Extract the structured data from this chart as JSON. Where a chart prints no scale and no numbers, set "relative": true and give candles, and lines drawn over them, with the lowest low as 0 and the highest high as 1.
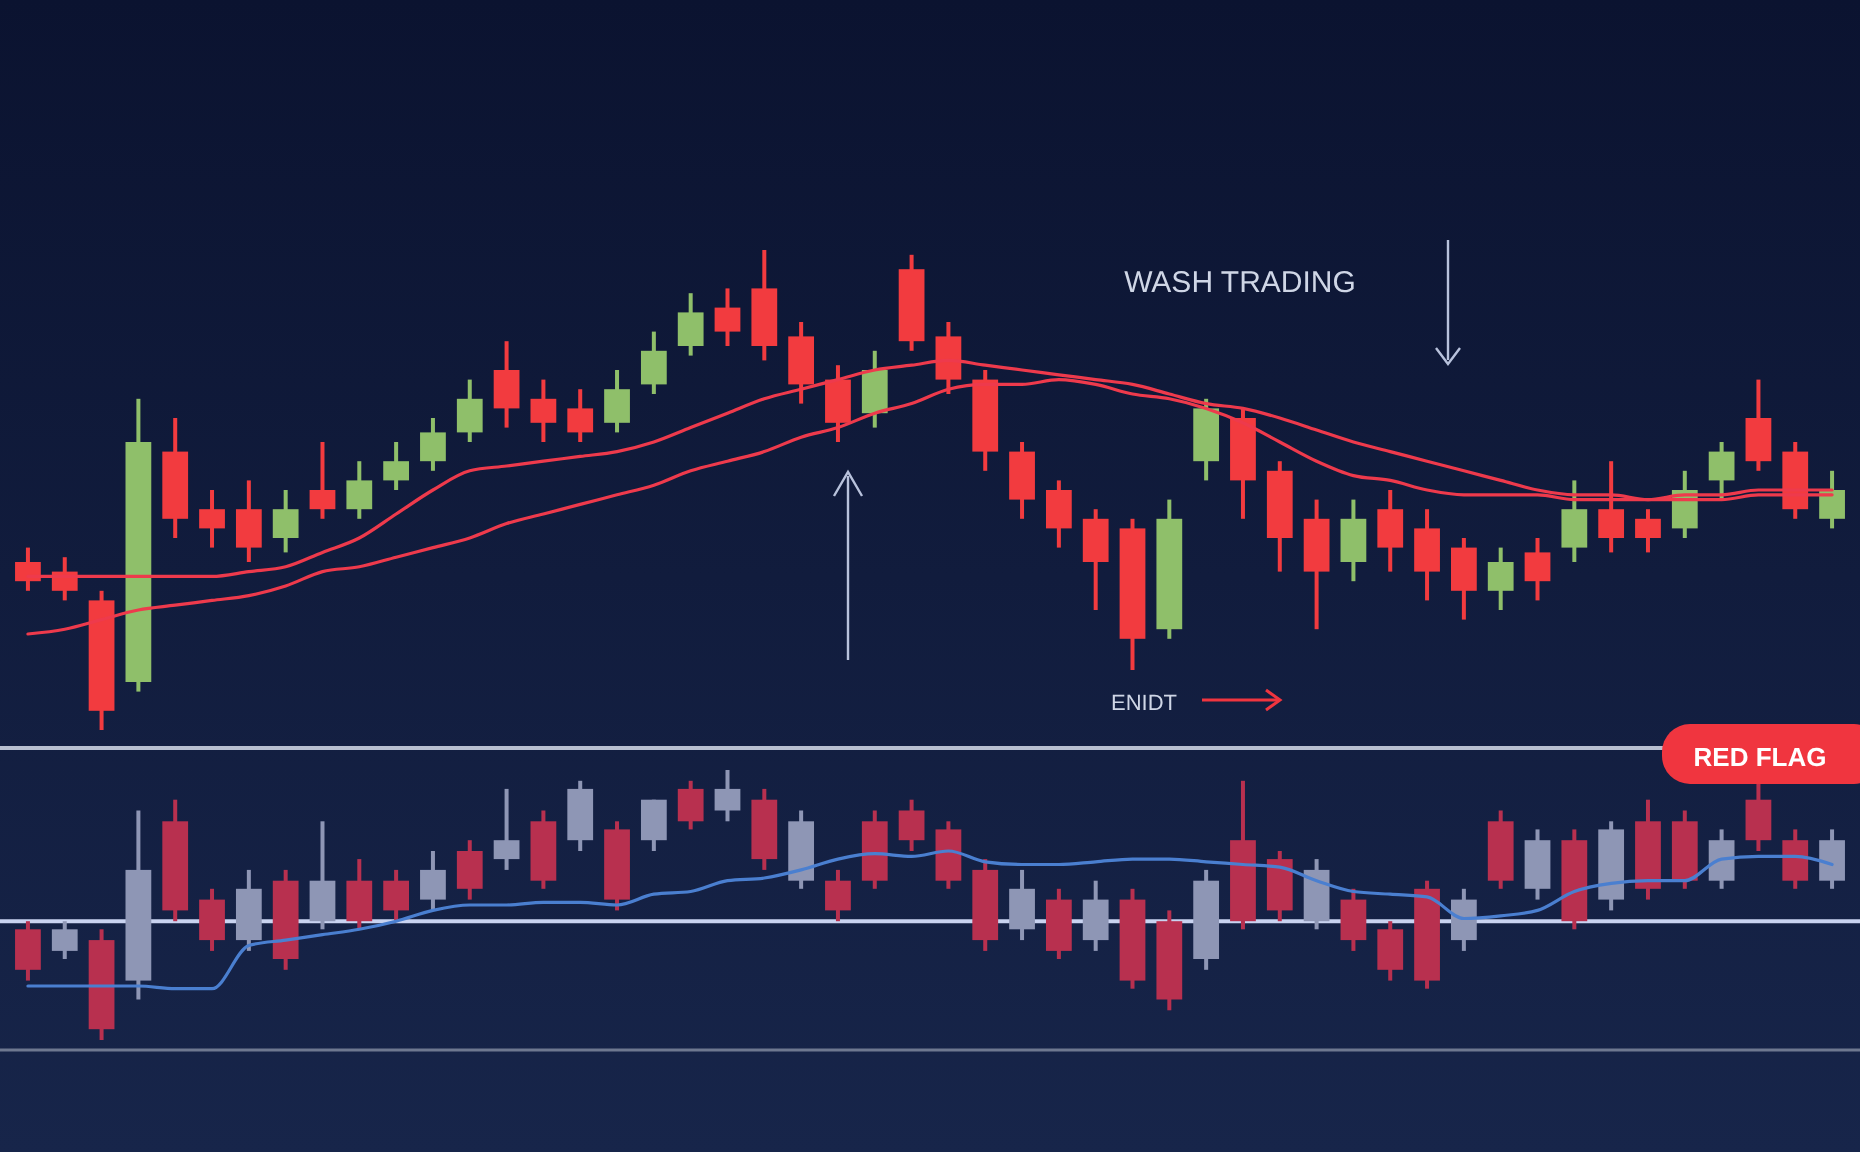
{
  "chart_data": [
    {
      "type": "candlestick",
      "relative": true,
      "categories": [
        null,
        null,
        null,
        null,
        null,
        null,
        null,
        null,
        null,
        null,
        null,
        null,
        null,
        null,
        null,
        null,
        null,
        null,
        null,
        null,
        null,
        null,
        null,
        null,
        null,
        null,
        null,
        null,
        null,
        null,
        null,
        null,
        null,
        null,
        null,
        null,
        null,
        null,
        null,
        null,
        null,
        null,
        null,
        null,
        null,
        null,
        null,
        null,
        null,
        null
      ],
      "ohlc": [
        [
          0.35,
          0.38,
          0.29,
          0.31
        ],
        [
          0.33,
          0.36,
          0.27,
          0.29
        ],
        [
          0.27,
          0.29,
          0,
          0.04
        ],
        [
          0.1,
          0.69,
          0.08,
          0.6
        ],
        [
          0.58,
          0.65,
          0.4,
          0.44
        ],
        [
          0.46,
          0.5,
          0.38,
          0.42
        ],
        [
          0.46,
          0.52,
          0.35,
          0.38
        ],
        [
          0.4,
          0.5,
          0.37,
          0.46
        ],
        [
          0.5,
          0.6,
          0.44,
          0.46
        ],
        [
          0.46,
          0.56,
          0.44,
          0.52
        ],
        [
          0.52,
          0.6,
          0.5,
          0.56
        ],
        [
          0.56,
          0.65,
          0.54,
          0.62
        ],
        [
          0.62,
          0.73,
          0.6,
          0.69
        ],
        [
          0.75,
          0.81,
          0.63,
          0.67
        ],
        [
          0.69,
          0.73,
          0.6,
          0.64
        ],
        [
          0.67,
          0.71,
          0.6,
          0.62
        ],
        [
          0.64,
          0.75,
          0.62,
          0.71
        ],
        [
          0.72,
          0.83,
          0.7,
          0.79
        ],
        [
          0.8,
          0.91,
          0.78,
          0.87
        ],
        [
          0.88,
          0.92,
          0.8,
          0.83
        ],
        [
          0.92,
          1,
          0.77,
          0.8
        ],
        [
          0.82,
          0.85,
          0.68,
          0.72
        ],
        [
          0.73,
          0.76,
          0.6,
          0.64
        ],
        [
          0.66,
          0.79,
          0.63,
          0.75
        ],
        [
          0.96,
          0.99,
          0.79,
          0.81
        ],
        [
          0.82,
          0.85,
          0.7,
          0.73
        ],
        [
          0.73,
          0.75,
          0.54,
          0.58
        ],
        [
          0.58,
          0.6,
          0.44,
          0.48
        ],
        [
          0.5,
          0.52,
          0.38,
          0.42
        ],
        [
          0.44,
          0.46,
          0.25,
          0.35
        ],
        [
          0.42,
          0.44,
          0.125,
          0.19
        ],
        [
          0.21,
          0.48,
          0.19,
          0.44
        ],
        [
          0.56,
          0.69,
          0.52,
          0.67
        ],
        [
          0.65,
          0.67,
          0.44,
          0.52
        ],
        [
          0.54,
          0.56,
          0.33,
          0.4
        ],
        [
          0.44,
          0.48,
          0.21,
          0.33
        ],
        [
          0.35,
          0.48,
          0.31,
          0.44
        ],
        [
          0.46,
          0.5,
          0.33,
          0.38
        ],
        [
          0.42,
          0.46,
          0.27,
          0.33
        ],
        [
          0.38,
          0.4,
          0.23,
          0.29
        ],
        [
          0.29,
          0.38,
          0.25,
          0.35
        ],
        [
          0.37,
          0.4,
          0.27,
          0.31
        ],
        [
          0.38,
          0.52,
          0.35,
          0.46
        ],
        [
          0.46,
          0.56,
          0.37,
          0.4
        ],
        [
          0.44,
          0.46,
          0.37,
          0.4
        ],
        [
          0.42,
          0.54,
          0.4,
          0.5
        ],
        [
          0.52,
          0.6,
          0.48,
          0.58
        ],
        [
          0.65,
          0.73,
          0.54,
          0.56
        ],
        [
          0.58,
          0.6,
          0.44,
          0.46
        ],
        [
          0.44,
          0.54,
          0.42,
          0.5
        ]
      ],
      "colors": [
        "#f23b3f",
        "#f23b3f",
        "#f23b3f",
        "#8fbf6a",
        "#f23b3f",
        "#f23b3f",
        "#f23b3f",
        "#8fbf6a",
        "#f23b3f",
        "#8fbf6a",
        "#8fbf6a",
        "#8fbf6a",
        "#8fbf6a",
        "#f23b3f",
        "#f23b3f",
        "#f23b3f",
        "#8fbf6a",
        "#8fbf6a",
        "#8fbf6a",
        "#f23b3f",
        "#f23b3f",
        "#f23b3f",
        "#f23b3f",
        "#8fbf6a",
        "#f23b3f",
        "#f23b3f",
        "#f23b3f",
        "#f23b3f",
        "#f23b3f",
        "#f23b3f",
        "#f23b3f",
        "#8fbf6a",
        "#8fbf6a",
        "#f23b3f",
        "#f23b3f",
        "#f23b3f",
        "#8fbf6a",
        "#f23b3f",
        "#f23b3f",
        "#f23b3f",
        "#8fbf6a",
        "#f23b3f",
        "#8fbf6a",
        "#f23b3f",
        "#f23b3f",
        "#8fbf6a",
        "#8fbf6a",
        "#f23b3f",
        "#f23b3f",
        "#8fbf6a"
      ],
      "series": [
        {
          "type": "line",
          "color": "#ee3a4c",
          "values": [
            0.32,
            0.32,
            0.32,
            0.32,
            0.32,
            0.32,
            0.33,
            0.34,
            0.37,
            0.4,
            0.45,
            0.5,
            0.54,
            0.55,
            0.56,
            0.57,
            0.58,
            0.6,
            0.63,
            0.66,
            0.69,
            0.71,
            0.73,
            0.75,
            0.76,
            0.77,
            0.76,
            0.75,
            0.74,
            0.73,
            0.72,
            0.7,
            0.68,
            0.67,
            0.65,
            0.625,
            0.6,
            0.58,
            0.56,
            0.54,
            0.52,
            0.5,
            0.49,
            0.49,
            0.48,
            0.49,
            0.49,
            0.5,
            0.5,
            0.5
          ]
        },
        {
          "type": "line",
          "color": "#ee3a4c",
          "values": [
            0.2,
            0.21,
            0.23,
            0.25,
            0.26,
            0.27,
            0.28,
            0.3,
            0.33,
            0.34,
            0.36,
            0.38,
            0.4,
            0.43,
            0.45,
            0.47,
            0.49,
            0.51,
            0.54,
            0.56,
            0.58,
            0.61,
            0.63,
            0.66,
            0.68,
            0.71,
            0.72,
            0.72,
            0.73,
            0.72,
            0.7,
            0.69,
            0.67,
            0.64,
            0.6,
            0.56,
            0.53,
            0.52,
            0.5,
            0.49,
            0.49,
            0.49,
            0.48,
            0.48,
            0.48,
            0.48,
            0.48,
            0.49,
            0.49,
            0.49
          ]
        }
      ],
      "annotations": [
        "WASH TRADING",
        "ENIDT"
      ]
    },
    {
      "type": "candlestick",
      "relative": true,
      "categories": [
        null,
        null,
        null,
        null,
        null,
        null,
        null,
        null,
        null,
        null,
        null,
        null,
        null,
        null,
        null,
        null,
        null,
        null,
        null,
        null,
        null,
        null,
        null,
        null,
        null,
        null,
        null,
        null,
        null,
        null,
        null,
        null,
        null,
        null,
        null,
        null,
        null,
        null,
        null,
        null,
        null,
        null,
        null,
        null,
        null,
        null,
        null,
        null,
        null,
        null
      ],
      "ohlc": [
        [
          0.41,
          0.44,
          0.22,
          0.26
        ],
        [
          0.33,
          0.44,
          0.3,
          0.41
        ],
        [
          0.37,
          0.41,
          0,
          0.04
        ],
        [
          0.22,
          0.85,
          0.15,
          0.63
        ],
        [
          0.81,
          0.89,
          0.44,
          0.48
        ],
        [
          0.52,
          0.56,
          0.33,
          0.37
        ],
        [
          0.37,
          0.63,
          0.33,
          0.56
        ],
        [
          0.59,
          0.63,
          0.26,
          0.3
        ],
        [
          0.44,
          0.81,
          0.41,
          0.59
        ],
        [
          0.59,
          0.67,
          0.41,
          0.44
        ],
        [
          0.59,
          0.63,
          0.44,
          0.48
        ],
        [
          0.52,
          0.7,
          0.48,
          0.63
        ],
        [
          0.7,
          0.74,
          0.52,
          0.56
        ],
        [
          0.67,
          0.93,
          0.63,
          0.74
        ],
        [
          0.81,
          0.85,
          0.56,
          0.59
        ],
        [
          0.74,
          0.96,
          0.7,
          0.93
        ],
        [
          0.78,
          0.81,
          0.48,
          0.52
        ],
        [
          0.74,
          0.89,
          0.7,
          0.89
        ],
        [
          0.93,
          0.96,
          0.78,
          0.81
        ],
        [
          0.85,
          1,
          0.81,
          0.93
        ],
        [
          0.89,
          0.93,
          0.63,
          0.67
        ],
        [
          0.59,
          0.85,
          0.56,
          0.81
        ],
        [
          0.59,
          0.63,
          0.44,
          0.48
        ],
        [
          0.81,
          0.85,
          0.56,
          0.59
        ],
        [
          0.85,
          0.89,
          0.7,
          0.74
        ],
        [
          0.78,
          0.81,
          0.56,
          0.59
        ],
        [
          0.63,
          0.67,
          0.33,
          0.37
        ],
        [
          0.41,
          0.63,
          0.37,
          0.56
        ],
        [
          0.52,
          0.56,
          0.3,
          0.33
        ],
        [
          0.37,
          0.59,
          0.33,
          0.52
        ],
        [
          0.52,
          0.56,
          0.19,
          0.22
        ],
        [
          0.44,
          0.48,
          0.11,
          0.15
        ],
        [
          0.3,
          0.63,
          0.26,
          0.59
        ],
        [
          0.74,
          0.96,
          0.41,
          0.44
        ],
        [
          0.67,
          0.7,
          0.44,
          0.48
        ],
        [
          0.44,
          0.67,
          0.41,
          0.63
        ],
        [
          0.52,
          0.56,
          0.33,
          0.37
        ],
        [
          0.41,
          0.44,
          0.22,
          0.26
        ],
        [
          0.56,
          0.59,
          0.19,
          0.22
        ],
        [
          0.37,
          0.56,
          0.33,
          0.52
        ],
        [
          0.81,
          0.85,
          0.56,
          0.59
        ],
        [
          0.56,
          0.78,
          0.52,
          0.74
        ],
        [
          0.74,
          0.78,
          0.41,
          0.44
        ],
        [
          0.52,
          0.81,
          0.48,
          0.78
        ],
        [
          0.81,
          0.89,
          0.52,
          0.56
        ],
        [
          0.81,
          0.85,
          0.56,
          0.59
        ],
        [
          0.59,
          0.78,
          0.56,
          0.74
        ],
        [
          0.89,
          0.96,
          0.7,
          0.74
        ],
        [
          0.74,
          0.78,
          0.56,
          0.59
        ],
        [
          0.59,
          0.78,
          0.56,
          0.74
        ]
      ],
      "colors": [
        "#b8304f",
        "#8e96b5",
        "#b8304f",
        "#8e96b5",
        "#b8304f",
        "#b8304f",
        "#8e96b5",
        "#b8304f",
        "#8e96b5",
        "#b8304f",
        "#b8304f",
        "#8e96b5",
        "#b8304f",
        "#8e96b5",
        "#b8304f",
        "#8e96b5",
        "#b8304f",
        "#8e96b5",
        "#b8304f",
        "#8e96b5",
        "#b8304f",
        "#8e96b5",
        "#b8304f",
        "#b8304f",
        "#b8304f",
        "#b8304f",
        "#b8304f",
        "#8e96b5",
        "#b8304f",
        "#8e96b5",
        "#b8304f",
        "#b8304f",
        "#8e96b5",
        "#b8304f",
        "#b8304f",
        "#8e96b5",
        "#b8304f",
        "#b8304f",
        "#b8304f",
        "#8e96b5",
        "#b8304f",
        "#8e96b5",
        "#b8304f",
        "#8e96b5",
        "#b8304f",
        "#b8304f",
        "#8e96b5",
        "#b8304f",
        "#b8304f",
        "#8e96b5"
      ],
      "series": [
        {
          "type": "line",
          "color": "#4a7fd0",
          "values": [
            0.2,
            0.2,
            0.2,
            0.2,
            0.19,
            0.19,
            0.35,
            0.37,
            0.39,
            0.41,
            0.44,
            0.48,
            0.5,
            0.5,
            0.51,
            0.51,
            0.5,
            0.54,
            0.55,
            0.59,
            0.6,
            0.63,
            0.67,
            0.69,
            0.68,
            0.7,
            0.66,
            0.65,
            0.65,
            0.66,
            0.67,
            0.67,
            0.66,
            0.65,
            0.64,
            0.59,
            0.55,
            0.54,
            0.53,
            0.45,
            0.46,
            0.48,
            0.55,
            0.58,
            0.59,
            0.59,
            0.67,
            0.68,
            0.68,
            0.65
          ]
        }
      ],
      "ref_lines": [
        {
          "axis": "y",
          "value": 0.44,
          "color": "#c9d3f0"
        }
      ],
      "annotations": [
        "RED FLAG"
      ]
    }
  ]
}
